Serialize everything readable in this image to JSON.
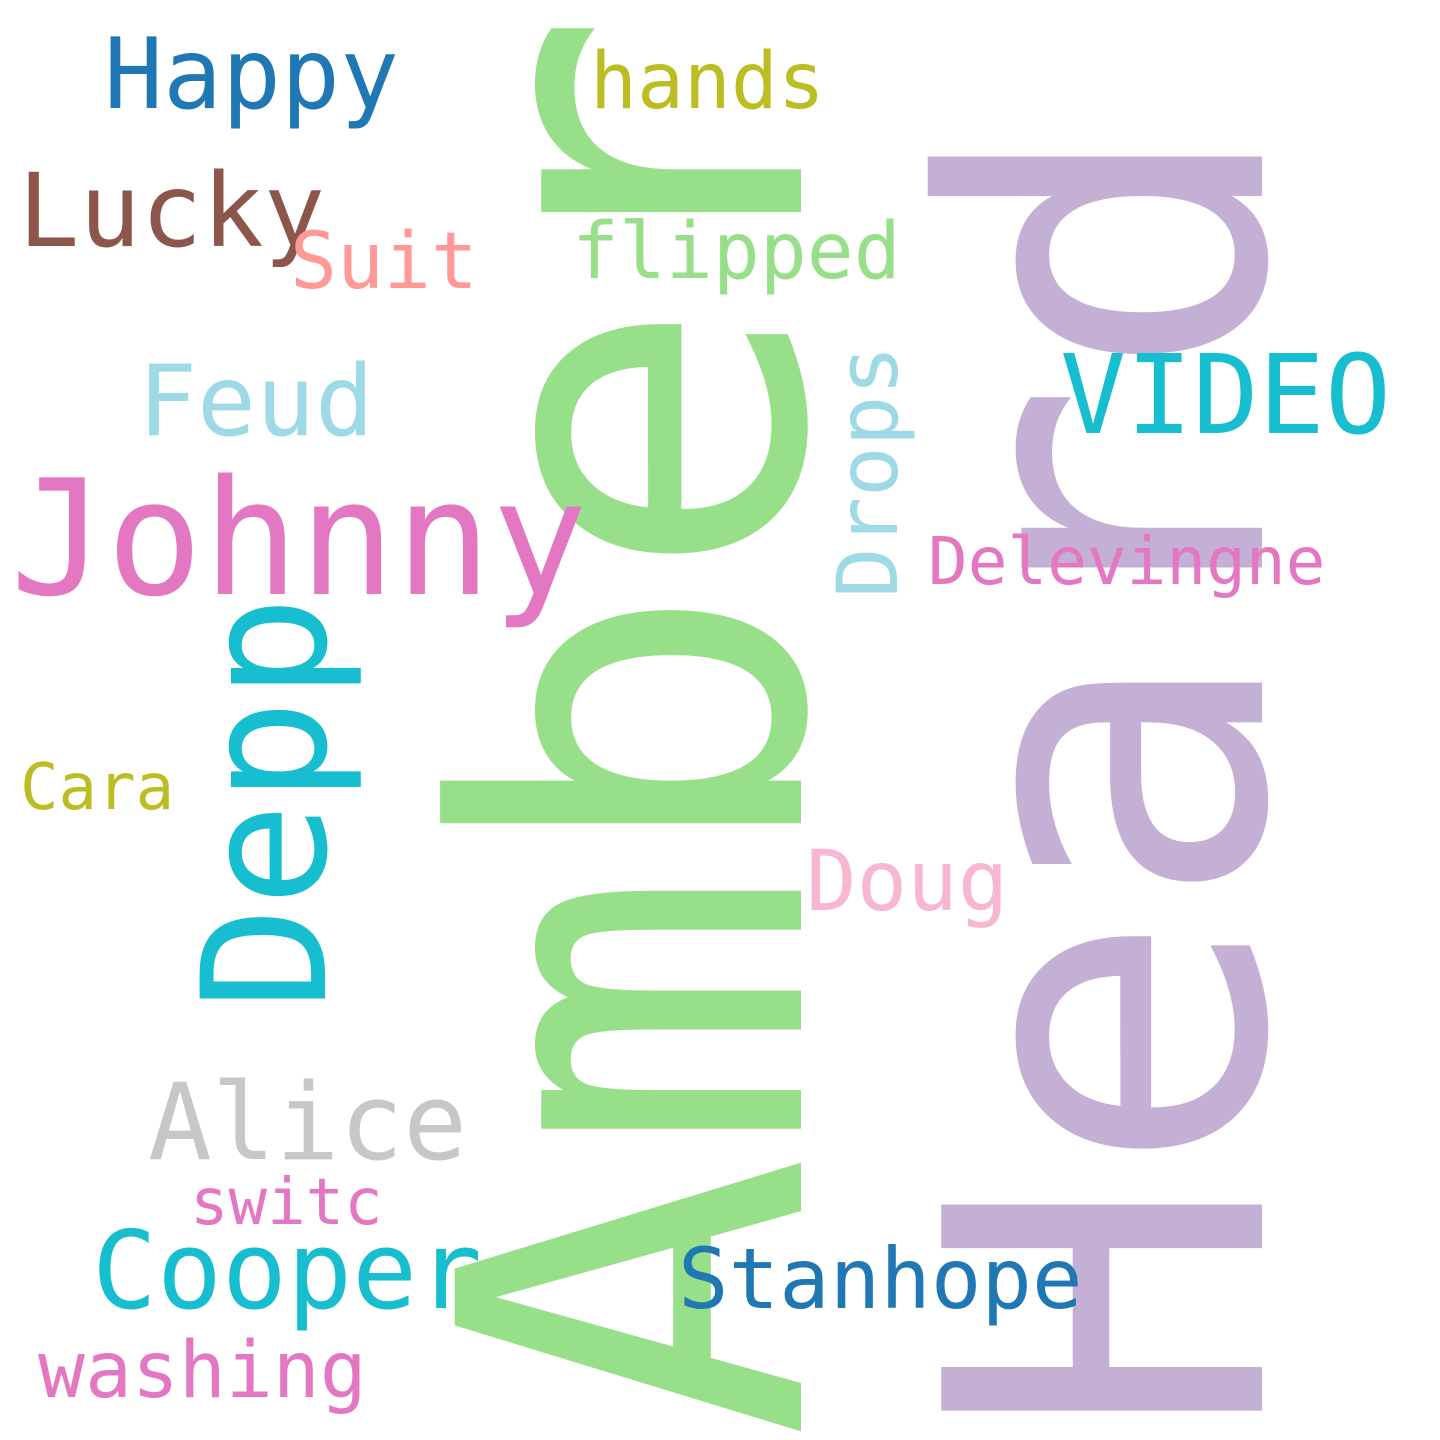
{
  "words": {
    "amber": {
      "text": "Amber",
      "color": "#98df8a"
    },
    "heard": {
      "text": "Heard",
      "color": "#c5b0d5"
    },
    "johnny": {
      "text": "Johnny",
      "color": "#e377c2"
    },
    "depp": {
      "text": "Depp",
      "color": "#17becf"
    },
    "happy": {
      "text": "Happy",
      "color": "#1f77b4"
    },
    "hands": {
      "text": "hands",
      "color": "#bcbd22"
    },
    "lucky": {
      "text": "Lucky",
      "color": "#8c564b"
    },
    "suit": {
      "text": "Suit",
      "color": "#ff9896"
    },
    "flipped": {
      "text": "flipped",
      "color": "#98df8a"
    },
    "feud": {
      "text": "Feud",
      "color": "#9edae5"
    },
    "video": {
      "text": "VIDEO",
      "color": "#17becf"
    },
    "drops": {
      "text": "Drops",
      "color": "#9edae5"
    },
    "delevingne": {
      "text": "Delevingne",
      "color": "#e377c2"
    },
    "cara": {
      "text": "Cara",
      "color": "#bcbd22"
    },
    "doug": {
      "text": "Doug",
      "color": "#f7b6d2"
    },
    "alice": {
      "text": "Alice",
      "color": "#c7c7c7"
    },
    "switc": {
      "text": "switc",
      "color": "#e377c2"
    },
    "cooper": {
      "text": "Cooper",
      "color": "#17becf"
    },
    "stanhope": {
      "text": "Stanhope",
      "color": "#1f77b4"
    },
    "washing": {
      "text": "washing",
      "color": "#e377c2"
    }
  }
}
